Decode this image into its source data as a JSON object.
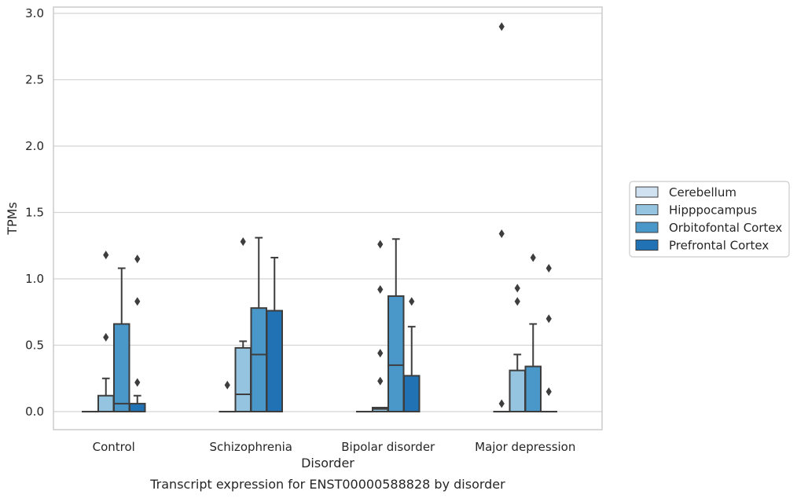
{
  "chart_data": {
    "type": "box",
    "caption": "Transcript expression for ENST00000588828 by disorder",
    "xlabel": "Disorder",
    "ylabel": "TPMs",
    "ylim": [
      -0.14,
      3.05
    ],
    "yticks": [
      "0.0",
      "0.5",
      "1.0",
      "1.5",
      "2.0",
      "2.5",
      "3.0"
    ],
    "grid": "horizontal",
    "legend_position": "right",
    "categories": [
      "Control",
      "Schizophrenia",
      "Bipolar disorder",
      "Major depression"
    ],
    "colors": {
      "Cerebellum": "#d0e1f2",
      "Hipppocampus": "#94c4df",
      "Orbitofontal Cortex": "#4a98c9",
      "Prefrontal Cortex": "#2171b5",
      "outline": "#3d3d3d",
      "grid": "#d4d4d4"
    },
    "series": [
      {
        "name": "Cerebellum",
        "boxes": [
          {
            "category": "Control",
            "q1": 0,
            "median": 0,
            "q3": 0,
            "whisker_low": 0,
            "whisker_high": 0,
            "outliers": []
          },
          {
            "category": "Schizophrenia",
            "q1": 0,
            "median": 0,
            "q3": 0,
            "whisker_low": 0,
            "whisker_high": 0,
            "outliers": [
              0.2
            ]
          },
          {
            "category": "Bipolar disorder",
            "q1": 0,
            "median": 0,
            "q3": 0,
            "whisker_low": 0,
            "whisker_high": 0,
            "outliers": []
          },
          {
            "category": "Major depression",
            "q1": 0,
            "median": 0,
            "q3": 0,
            "whisker_low": 0,
            "whisker_high": 0,
            "outliers": [
              0.06,
              1.34,
              2.9
            ]
          }
        ]
      },
      {
        "name": "Hipppocampus",
        "boxes": [
          {
            "category": "Control",
            "q1": 0,
            "median": 0,
            "q3": 0.12,
            "whisker_low": 0,
            "whisker_high": 0.25,
            "outliers": [
              0.56,
              1.18
            ]
          },
          {
            "category": "Schizophrenia",
            "q1": 0,
            "median": 0.13,
            "q3": 0.48,
            "whisker_low": 0,
            "whisker_high": 0.53,
            "outliers": [
              1.28
            ]
          },
          {
            "category": "Bipolar disorder",
            "q1": 0,
            "median": 0.02,
            "q3": 0.03,
            "whisker_low": 0,
            "whisker_high": 0.03,
            "outliers": [
              0.23,
              0.44,
              0.92,
              1.26
            ]
          },
          {
            "category": "Major depression",
            "q1": 0,
            "median": 0,
            "q3": 0.31,
            "whisker_low": 0,
            "whisker_high": 0.43,
            "outliers": [
              0.83,
              0.93
            ]
          }
        ]
      },
      {
        "name": "Orbitofontal Cortex",
        "boxes": [
          {
            "category": "Control",
            "q1": 0,
            "median": 0.06,
            "q3": 0.66,
            "whisker_low": 0,
            "whisker_high": 1.08,
            "outliers": []
          },
          {
            "category": "Schizophrenia",
            "q1": 0,
            "median": 0.43,
            "q3": 0.78,
            "whisker_low": 0,
            "whisker_high": 1.31,
            "outliers": []
          },
          {
            "category": "Bipolar disorder",
            "q1": 0,
            "median": 0.35,
            "q3": 0.87,
            "whisker_low": 0,
            "whisker_high": 1.3,
            "outliers": []
          },
          {
            "category": "Major depression",
            "q1": 0,
            "median": 0,
            "q3": 0.34,
            "whisker_low": 0,
            "whisker_high": 0.66,
            "outliers": [
              1.16
            ]
          }
        ]
      },
      {
        "name": "Prefrontal Cortex",
        "boxes": [
          {
            "category": "Control",
            "q1": 0,
            "median": 0,
            "q3": 0.06,
            "whisker_low": 0,
            "whisker_high": 0.12,
            "outliers": [
              0.22,
              0.83,
              1.15
            ]
          },
          {
            "category": "Schizophrenia",
            "q1": 0,
            "median": 0,
            "q3": 0.76,
            "whisker_low": 0,
            "whisker_high": 1.16,
            "outliers": []
          },
          {
            "category": "Bipolar disorder",
            "q1": 0,
            "median": 0,
            "q3": 0.27,
            "whisker_low": 0,
            "whisker_high": 0.64,
            "outliers": [
              0.83
            ]
          },
          {
            "category": "Major depression",
            "q1": 0,
            "median": 0,
            "q3": 0,
            "whisker_low": 0,
            "whisker_high": 0,
            "outliers": [
              0.15,
              0.7,
              1.08
            ]
          }
        ]
      }
    ]
  }
}
